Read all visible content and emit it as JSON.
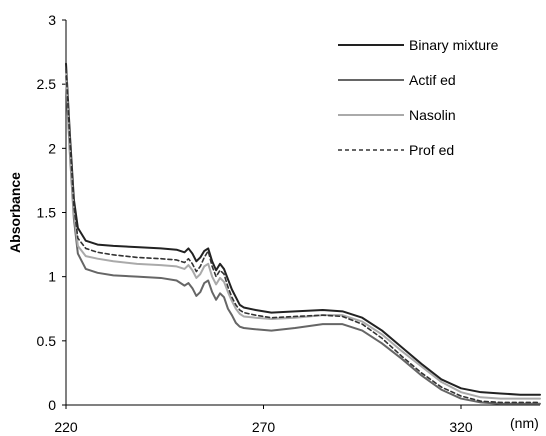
{
  "chart_data": {
    "type": "line",
    "title": "",
    "xlabel": "",
    "x_unit_label": "(nm)",
    "ylabel": "Absorbance",
    "xlim": [
      220,
      340
    ],
    "ylim": [
      0,
      3
    ],
    "x_ticks": [
      220,
      270,
      320
    ],
    "y_ticks": [
      0,
      0.5,
      1,
      1.5,
      2,
      2.5,
      3
    ],
    "y_tick_labels": [
      "0",
      "0.5",
      "1",
      "1.5",
      "2",
      "2.5",
      "3"
    ],
    "grid": false,
    "legend_position": "top-right",
    "series": [
      {
        "name": "Binary mixture",
        "color": "#222222",
        "style": "solid",
        "points": [
          [
            220,
            2.66
          ],
          [
            221,
            2.1
          ],
          [
            222,
            1.6
          ],
          [
            223,
            1.38
          ],
          [
            225,
            1.28
          ],
          [
            228,
            1.25
          ],
          [
            232,
            1.24
          ],
          [
            238,
            1.23
          ],
          [
            244,
            1.22
          ],
          [
            248,
            1.21
          ],
          [
            250,
            1.19
          ],
          [
            251,
            1.22
          ],
          [
            252,
            1.18
          ],
          [
            253,
            1.12
          ],
          [
            254,
            1.15
          ],
          [
            255,
            1.2
          ],
          [
            256,
            1.22
          ],
          [
            257,
            1.12
          ],
          [
            258,
            1.05
          ],
          [
            259,
            1.1
          ],
          [
            260,
            1.06
          ],
          [
            261,
            0.98
          ],
          [
            262,
            0.9
          ],
          [
            263,
            0.84
          ],
          [
            264,
            0.78
          ],
          [
            265,
            0.76
          ],
          [
            268,
            0.74
          ],
          [
            272,
            0.72
          ],
          [
            278,
            0.73
          ],
          [
            285,
            0.74
          ],
          [
            290,
            0.73
          ],
          [
            295,
            0.68
          ],
          [
            300,
            0.58
          ],
          [
            305,
            0.45
          ],
          [
            310,
            0.32
          ],
          [
            315,
            0.2
          ],
          [
            320,
            0.13
          ],
          [
            325,
            0.1
          ],
          [
            330,
            0.09
          ],
          [
            335,
            0.08
          ],
          [
            340,
            0.08
          ]
        ]
      },
      {
        "name": "Actif ed",
        "color": "#666666",
        "style": "solid",
        "points": [
          [
            220,
            2.56
          ],
          [
            221,
            1.95
          ],
          [
            222,
            1.45
          ],
          [
            223,
            1.18
          ],
          [
            225,
            1.06
          ],
          [
            228,
            1.03
          ],
          [
            232,
            1.01
          ],
          [
            238,
            1.0
          ],
          [
            244,
            0.99
          ],
          [
            248,
            0.97
          ],
          [
            250,
            0.93
          ],
          [
            251,
            0.95
          ],
          [
            252,
            0.91
          ],
          [
            253,
            0.85
          ],
          [
            254,
            0.88
          ],
          [
            255,
            0.95
          ],
          [
            256,
            0.97
          ],
          [
            257,
            0.88
          ],
          [
            258,
            0.82
          ],
          [
            259,
            0.87
          ],
          [
            260,
            0.84
          ],
          [
            261,
            0.75
          ],
          [
            262,
            0.7
          ],
          [
            263,
            0.64
          ],
          [
            264,
            0.61
          ],
          [
            265,
            0.6
          ],
          [
            268,
            0.59
          ],
          [
            272,
            0.58
          ],
          [
            278,
            0.6
          ],
          [
            285,
            0.63
          ],
          [
            290,
            0.63
          ],
          [
            295,
            0.58
          ],
          [
            300,
            0.48
          ],
          [
            305,
            0.36
          ],
          [
            310,
            0.23
          ],
          [
            315,
            0.12
          ],
          [
            320,
            0.05
          ],
          [
            325,
            0.02
          ],
          [
            330,
            0.01
          ],
          [
            335,
            0.01
          ],
          [
            340,
            0.01
          ]
        ]
      },
      {
        "name": "Nasolin",
        "color": "#aaaaaa",
        "style": "solid",
        "points": [
          [
            220,
            2.6
          ],
          [
            221,
            2.0
          ],
          [
            222,
            1.5
          ],
          [
            223,
            1.24
          ],
          [
            225,
            1.16
          ],
          [
            228,
            1.14
          ],
          [
            232,
            1.12
          ],
          [
            238,
            1.1
          ],
          [
            244,
            1.09
          ],
          [
            248,
            1.08
          ],
          [
            250,
            1.06
          ],
          [
            251,
            1.09
          ],
          [
            252,
            1.05
          ],
          [
            253,
            0.99
          ],
          [
            254,
            1.02
          ],
          [
            255,
            1.08
          ],
          [
            256,
            1.1
          ],
          [
            257,
            1.0
          ],
          [
            258,
            0.94
          ],
          [
            259,
            0.99
          ],
          [
            260,
            0.96
          ],
          [
            261,
            0.88
          ],
          [
            262,
            0.81
          ],
          [
            263,
            0.75
          ],
          [
            264,
            0.71
          ],
          [
            265,
            0.69
          ],
          [
            268,
            0.68
          ],
          [
            272,
            0.67
          ],
          [
            278,
            0.68
          ],
          [
            285,
            0.7
          ],
          [
            290,
            0.7
          ],
          [
            295,
            0.65
          ],
          [
            300,
            0.55
          ],
          [
            305,
            0.42
          ],
          [
            310,
            0.3
          ],
          [
            315,
            0.18
          ],
          [
            320,
            0.1
          ],
          [
            325,
            0.06
          ],
          [
            330,
            0.05
          ],
          [
            335,
            0.05
          ],
          [
            340,
            0.05
          ]
        ]
      },
      {
        "name": "Prof ed",
        "color": "#333333",
        "style": "dashed",
        "points": [
          [
            220,
            2.62
          ],
          [
            221,
            2.05
          ],
          [
            222,
            1.55
          ],
          [
            223,
            1.3
          ],
          [
            225,
            1.22
          ],
          [
            228,
            1.19
          ],
          [
            232,
            1.17
          ],
          [
            238,
            1.15
          ],
          [
            244,
            1.14
          ],
          [
            248,
            1.13
          ],
          [
            250,
            1.11
          ],
          [
            251,
            1.14
          ],
          [
            252,
            1.1
          ],
          [
            253,
            1.04
          ],
          [
            254,
            1.08
          ],
          [
            255,
            1.15
          ],
          [
            256,
            1.2
          ],
          [
            257,
            1.08
          ],
          [
            258,
            1.0
          ],
          [
            259,
            1.05
          ],
          [
            260,
            1.02
          ],
          [
            261,
            0.92
          ],
          [
            262,
            0.84
          ],
          [
            263,
            0.78
          ],
          [
            264,
            0.74
          ],
          [
            265,
            0.72
          ],
          [
            268,
            0.7
          ],
          [
            272,
            0.68
          ],
          [
            278,
            0.69
          ],
          [
            285,
            0.7
          ],
          [
            290,
            0.69
          ],
          [
            295,
            0.63
          ],
          [
            300,
            0.52
          ],
          [
            305,
            0.38
          ],
          [
            310,
            0.25
          ],
          [
            315,
            0.14
          ],
          [
            320,
            0.07
          ],
          [
            325,
            0.03
          ],
          [
            330,
            0.02
          ],
          [
            335,
            0.02
          ],
          [
            340,
            0.02
          ]
        ]
      }
    ]
  }
}
